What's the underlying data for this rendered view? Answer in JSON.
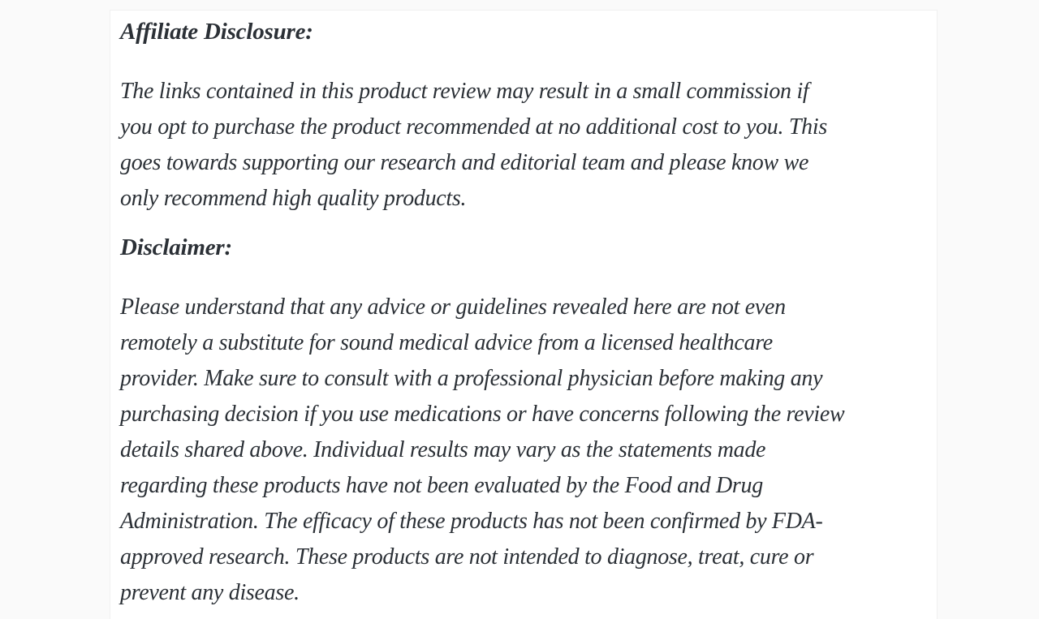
{
  "page": {
    "background": "#fafafa",
    "card_background": "#ffffff",
    "card_border_color": "#f0f0f0",
    "text_color": "#2b3036"
  },
  "article": {
    "sections": [
      {
        "heading": "Affiliate Disclosure:",
        "lines": [
          "The links contained in this product review may result in a small commission if",
          "you opt to purchase the product recommended at no additional cost to you. This",
          "goes towards supporting our research and editorial team and please know we",
          "only recommend high quality products."
        ]
      },
      {
        "heading": "Disclaimer:",
        "lines": [
          "Please understand that any advice or guidelines revealed here are not even",
          "remotely a substitute for sound medical advice from a licensed healthcare",
          "provider. Make sure to consult with a professional physician before making any",
          "purchasing decision if you use medications or have concerns following the review",
          "details shared above. Individual results may vary as the statements made",
          "regarding these products have not been evaluated by the Food and Drug",
          "Administration. The efficacy of these products has not been confirmed by FDA-",
          "approved research. These products are not intended to diagnose, treat, cure or",
          "prevent any disease."
        ]
      }
    ]
  }
}
